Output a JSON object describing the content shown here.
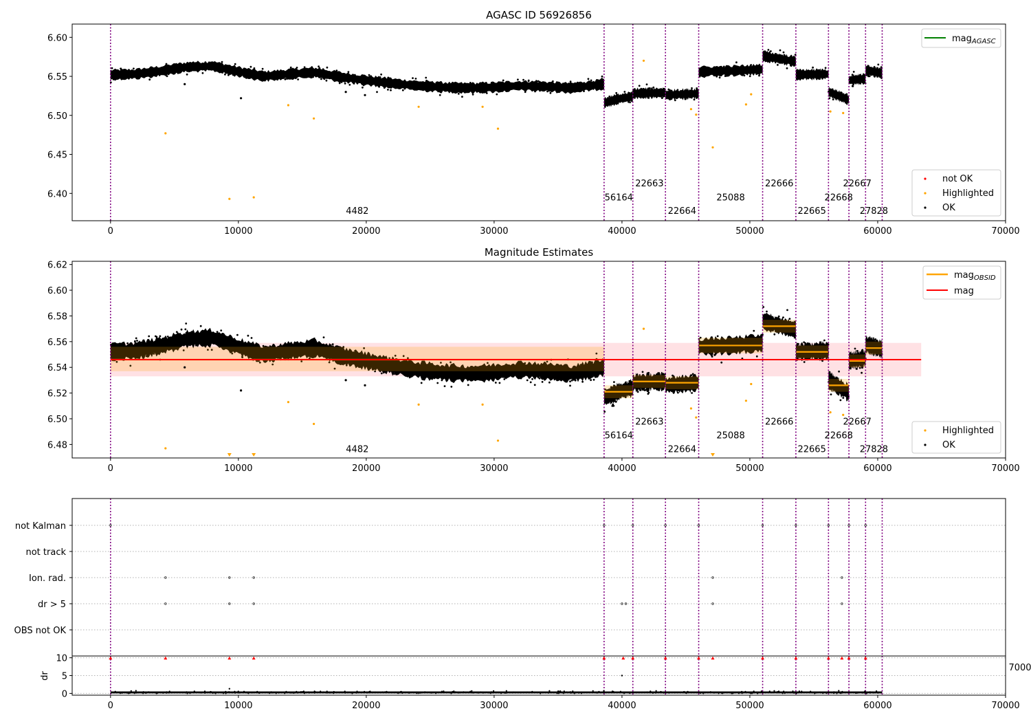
{
  "chart_data": [
    {
      "type": "scatter",
      "title": "AGASC ID 56926856",
      "xlim": [
        -3000,
        70000
      ],
      "ylim": [
        6.365,
        6.617
      ],
      "xticks": [
        0,
        10000,
        20000,
        30000,
        40000,
        50000,
        60000,
        70000
      ],
      "yticks": [
        6.4,
        6.45,
        6.5,
        6.55,
        6.6
      ],
      "obs_boundaries": [
        0,
        38600,
        40850,
        43400,
        46000,
        51000,
        53600,
        56150,
        57750,
        59050,
        60350
      ],
      "obs_labels": [
        {
          "text": "4482",
          "x": 19300,
          "y": 6.374
        },
        {
          "text": "56164",
          "x": 39750,
          "y": 6.391
        },
        {
          "text": "22663",
          "x": 42150,
          "y": 6.409
        },
        {
          "text": "22664",
          "x": 44700,
          "y": 6.374
        },
        {
          "text": "25088",
          "x": 48500,
          "y": 6.391
        },
        {
          "text": "22666",
          "x": 52300,
          "y": 6.409
        },
        {
          "text": "22665",
          "x": 54850,
          "y": 6.374
        },
        {
          "text": "22668",
          "x": 56950,
          "y": 6.391
        },
        {
          "text": "22667",
          "x": 58400,
          "y": 6.409
        },
        {
          "text": "27828",
          "x": 59700,
          "y": 6.374
        }
      ],
      "band_segments": [
        {
          "x": [
            0,
            2000,
            4000,
            6000,
            8000,
            10000,
            12000,
            14000,
            16000,
            18000,
            20000,
            22000,
            24000,
            26000,
            28000,
            30000,
            32000,
            34000,
            36000,
            38600
          ],
          "y": [
            6.552,
            6.553,
            6.557,
            6.562,
            6.563,
            6.556,
            6.55,
            6.553,
            6.555,
            6.549,
            6.545,
            6.541,
            6.538,
            6.536,
            6.535,
            6.536,
            6.538,
            6.537,
            6.535,
            6.54
          ]
        },
        {
          "x": [
            38600,
            39700,
            40850
          ],
          "y": [
            6.516,
            6.521,
            6.524
          ]
        },
        {
          "x": [
            40850,
            43400
          ],
          "y": [
            6.528,
            6.529
          ]
        },
        {
          "x": [
            43400,
            46000
          ],
          "y": [
            6.526,
            6.528
          ]
        },
        {
          "x": [
            46000,
            48500,
            51000
          ],
          "y": [
            6.556,
            6.557,
            6.559
          ]
        },
        {
          "x": [
            51000,
            53600
          ],
          "y": [
            6.576,
            6.569
          ]
        },
        {
          "x": [
            53600,
            56150
          ],
          "y": [
            6.552,
            6.553
          ]
        },
        {
          "x": [
            56150,
            57750
          ],
          "y": [
            6.53,
            6.52
          ]
        },
        {
          "x": [
            57750,
            59050
          ],
          "y": [
            6.545,
            6.547
          ]
        },
        {
          "x": [
            59050,
            60350
          ],
          "y": [
            6.558,
            6.554
          ]
        }
      ],
      "band_halfwidth": 0.006,
      "highlighted_points": [
        [
          4300,
          6.477
        ],
        [
          9300,
          6.393
        ],
        [
          11200,
          6.395
        ],
        [
          13900,
          6.513
        ],
        [
          15900,
          6.496
        ],
        [
          24100,
          6.511
        ],
        [
          29100,
          6.511
        ],
        [
          30300,
          6.483
        ],
        [
          41700,
          6.57
        ],
        [
          45400,
          6.508
        ],
        [
          45800,
          6.501
        ],
        [
          47100,
          6.459
        ],
        [
          49700,
          6.514
        ],
        [
          50100,
          6.527
        ],
        [
          56300,
          6.505
        ],
        [
          57300,
          6.503
        ]
      ],
      "stray_ok_points": [
        [
          5800,
          6.54
        ],
        [
          10200,
          6.522
        ],
        [
          18400,
          6.53
        ],
        [
          19900,
          6.526
        ]
      ],
      "legend_upper": [
        {
          "label": "mag",
          "subscript": "AGASC",
          "color": "#008000"
        }
      ],
      "legend_lower": [
        {
          "label": "not OK",
          "color": "#ff0000"
        },
        {
          "label": "Highlighted",
          "color": "#ffa500"
        },
        {
          "label": "OK",
          "color": "#000000"
        }
      ]
    },
    {
      "type": "scatter",
      "title": "Magnitude Estimates",
      "xlim": [
        -3000,
        70000
      ],
      "ylim": [
        6.4695,
        6.6225
      ],
      "xticks": [
        0,
        10000,
        20000,
        30000,
        40000,
        50000,
        60000,
        70000
      ],
      "yticks": [
        6.48,
        6.5,
        6.52,
        6.54,
        6.56,
        6.58,
        6.6,
        6.62
      ],
      "obs_labels": [
        {
          "text": "4482",
          "x": 19300,
          "y": 6.474
        },
        {
          "text": "56164",
          "x": 39750,
          "y": 6.4847
        },
        {
          "text": "22663",
          "x": 42150,
          "y": 6.4954
        },
        {
          "text": "22664",
          "x": 44700,
          "y": 6.474
        },
        {
          "text": "25088",
          "x": 48500,
          "y": 6.4847
        },
        {
          "text": "22666",
          "x": 52300,
          "y": 6.4954
        },
        {
          "text": "22665",
          "x": 54850,
          "y": 6.474
        },
        {
          "text": "22668",
          "x": 56950,
          "y": 6.4847
        },
        {
          "text": "22667",
          "x": 58400,
          "y": 6.4954
        },
        {
          "text": "27828",
          "x": 59700,
          "y": 6.474
        }
      ],
      "mean_mag": 6.546,
      "mean_band": [
        6.533,
        6.559
      ],
      "mean_xrange": [
        0,
        63400
      ],
      "obsid_mag": [
        {
          "x0": 0,
          "x1": 38600,
          "mag": 6.546,
          "lo": 6.537,
          "hi": 6.556
        },
        {
          "x0": 38600,
          "x1": 40850,
          "mag": 6.521,
          "lo": 6.516,
          "hi": 6.526
        },
        {
          "x0": 40850,
          "x1": 43400,
          "mag": 6.529,
          "lo": 6.524,
          "hi": 6.534
        },
        {
          "x0": 43400,
          "x1": 46000,
          "mag": 6.528,
          "lo": 6.523,
          "hi": 6.533
        },
        {
          "x0": 46000,
          "x1": 51000,
          "mag": 6.557,
          "lo": 6.551,
          "hi": 6.563
        },
        {
          "x0": 51000,
          "x1": 53600,
          "mag": 6.572,
          "lo": 6.567,
          "hi": 6.577
        },
        {
          "x0": 53600,
          "x1": 56150,
          "mag": 6.552,
          "lo": 6.547,
          "hi": 6.557
        },
        {
          "x0": 56150,
          "x1": 57750,
          "mag": 6.526,
          "lo": 6.521,
          "hi": 6.531
        },
        {
          "x0": 57750,
          "x1": 59050,
          "mag": 6.545,
          "lo": 6.54,
          "hi": 6.55
        },
        {
          "x0": 59050,
          "x1": 60350,
          "mag": 6.555,
          "lo": 6.55,
          "hi": 6.56
        }
      ],
      "highlighted_points": [
        [
          4300,
          6.477
        ],
        [
          13900,
          6.513
        ],
        [
          15900,
          6.496
        ],
        [
          24100,
          6.511
        ],
        [
          29100,
          6.511
        ],
        [
          30300,
          6.483
        ],
        [
          41700,
          6.57
        ],
        [
          45400,
          6.508
        ],
        [
          45800,
          6.501
        ],
        [
          49700,
          6.514
        ],
        [
          50100,
          6.527
        ],
        [
          56300,
          6.505
        ],
        [
          57300,
          6.503
        ]
      ],
      "offscale_markers": [
        9300,
        11200,
        47100
      ],
      "legend_upper": [
        {
          "label": "mag",
          "subscript": "OBSID",
          "color": "#ffa500"
        },
        {
          "label": "mag",
          "subscript": "",
          "color": "#ff0000"
        }
      ],
      "legend_lower": [
        {
          "label": "Highlighted",
          "color": "#ffa500"
        },
        {
          "label": "OK",
          "color": "#000000"
        }
      ]
    },
    {
      "type": "scatter",
      "title": "",
      "xlim": [
        -3000,
        70000
      ],
      "categories": [
        "not Kalman",
        "not track",
        "Ion. rad.",
        "dr > 5",
        "OBS not OK"
      ],
      "flag_points": {
        "not Kalman": [
          0,
          38600,
          40850,
          43400,
          46000,
          51000,
          53600,
          56150,
          57750,
          59050
        ],
        "not track": [],
        "Ion. rad.": [
          4300,
          9300,
          11200,
          47100,
          57200
        ],
        "dr > 5": [
          4300,
          9300,
          11200,
          40000,
          40300,
          47100,
          57200
        ],
        "OBS not OK": []
      }
    },
    {
      "type": "scatter",
      "title": "",
      "ylabel": "dr",
      "xlim": [
        -3000,
        70000
      ],
      "ylim": [
        -0.5,
        10.5
      ],
      "xticks": [
        0,
        10000,
        20000,
        30000,
        40000,
        50000,
        60000,
        70000
      ],
      "yticks": [
        0,
        5,
        10
      ],
      "dr_data_xrange": [
        0,
        60350
      ],
      "not_ok_points": [
        [
          0,
          9.9
        ],
        [
          4300,
          9.9
        ],
        [
          9300,
          9.9
        ],
        [
          11200,
          9.9
        ],
        [
          38600,
          9.9
        ],
        [
          40100,
          9.9
        ],
        [
          40850,
          9.9
        ],
        [
          43400,
          9.9
        ],
        [
          46000,
          9.9
        ],
        [
          47100,
          9.9
        ],
        [
          51000,
          9.9
        ],
        [
          53600,
          9.9
        ],
        [
          56150,
          9.9
        ],
        [
          57200,
          9.9
        ],
        [
          57750,
          9.9
        ],
        [
          59050,
          9.9
        ]
      ],
      "ok_points": [
        [
          9300,
          1.3
        ],
        [
          40000,
          5.0
        ]
      ],
      "stray_tick_text": "7000"
    }
  ]
}
